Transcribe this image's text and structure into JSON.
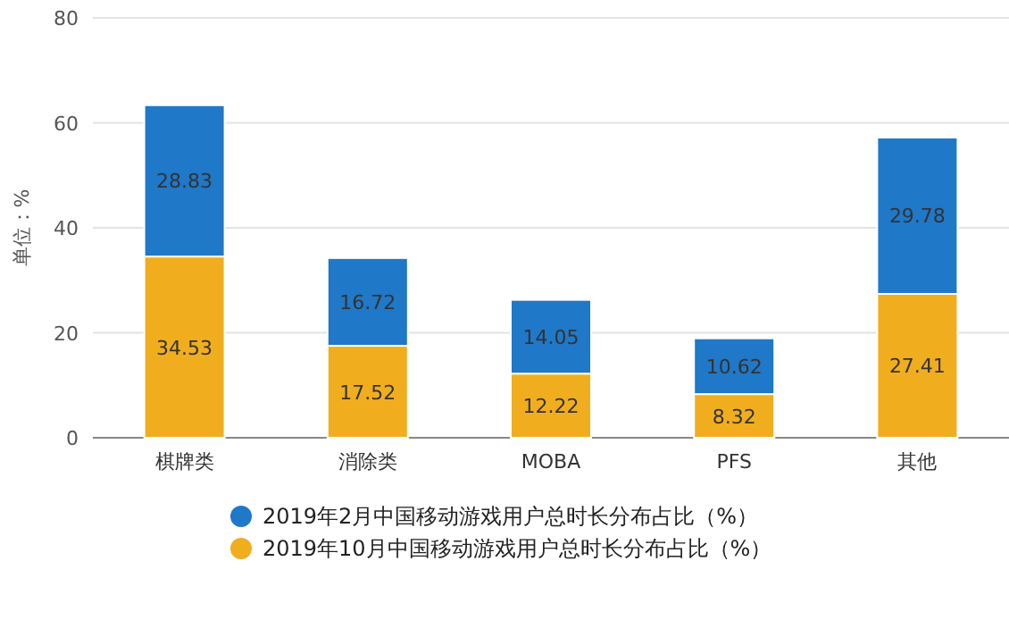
{
  "chart_data": {
    "type": "bar",
    "stacked": true,
    "ylabel": "单位：%",
    "categories": [
      "棋牌类",
      "消除类",
      "MOBA",
      "PFS",
      "其他"
    ],
    "series": [
      {
        "name": "2019年10月中国移动游戏用户总时长分布占比（%）",
        "color": "#f0ae1e",
        "values": [
          34.53,
          17.52,
          12.22,
          8.32,
          27.41
        ]
      },
      {
        "name": "2019年2月中国移动游戏用户总时长分布占比（%）",
        "color": "#1f78c8",
        "values": [
          28.83,
          16.72,
          14.05,
          10.62,
          29.78
        ]
      }
    ],
    "ylim": [
      0,
      80
    ],
    "yticks": [
      0,
      20,
      40,
      60,
      80
    ],
    "grid": "y",
    "data_labels": true,
    "legend": "bottom"
  }
}
